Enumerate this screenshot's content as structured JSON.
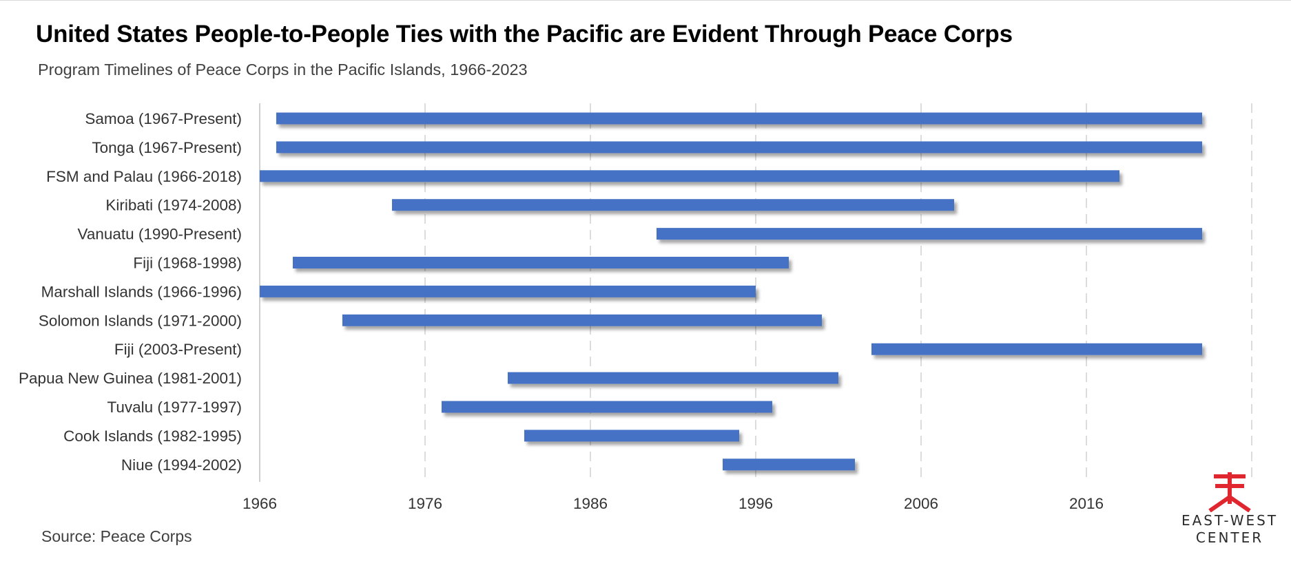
{
  "header": {
    "title": "United States People-to-People Ties with the Pacific are Evident Through Peace Corps",
    "subtitle": "Program Timelines of Peace Corps in the Pacific Islands, 1966-2023"
  },
  "footer": {
    "source": "Source: Peace Corps"
  },
  "logo": {
    "line1": "EAST-WEST",
    "line2": "CENTER",
    "color": "#e0262e"
  },
  "chart_data": {
    "type": "bar",
    "orientation": "horizontal-floating",
    "xlim": [
      1966,
      2026
    ],
    "xticks": [
      1966,
      1976,
      1986,
      1996,
      2006,
      2016
    ],
    "grid": "vertical-dashed",
    "bar_color": "#4472c4",
    "series": [
      {
        "label": "Samoa (1967-Present)",
        "start": 1967,
        "end": 2023
      },
      {
        "label": "Tonga (1967-Present)",
        "start": 1967,
        "end": 2023
      },
      {
        "label": "FSM and Palau (1966-2018)",
        "start": 1966,
        "end": 2018
      },
      {
        "label": "Kiribati (1974-2008)",
        "start": 1974,
        "end": 2008
      },
      {
        "label": "Vanuatu (1990-Present)",
        "start": 1990,
        "end": 2023
      },
      {
        "label": "Fiji (1968-1998)",
        "start": 1968,
        "end": 1998
      },
      {
        "label": "Marshall Islands (1966-1996)",
        "start": 1966,
        "end": 1996
      },
      {
        "label": "Solomon Islands (1971-2000)",
        "start": 1971,
        "end": 2000
      },
      {
        "label": "Fiji (2003-Present)",
        "start": 2003,
        "end": 2023
      },
      {
        "label": "Papua New Guinea (1981-2001)",
        "start": 1981,
        "end": 2001
      },
      {
        "label": "Tuvalu (1977-1997)",
        "start": 1977,
        "end": 1997
      },
      {
        "label": "Cook Islands (1982-1995)",
        "start": 1982,
        "end": 1995
      },
      {
        "label": "Niue (1994-2002)",
        "start": 1994,
        "end": 2002
      }
    ]
  }
}
